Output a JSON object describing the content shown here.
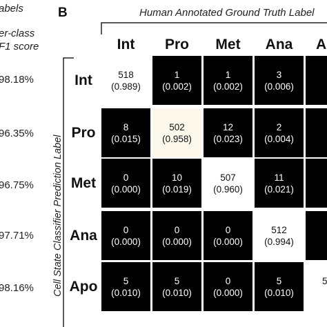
{
  "panel_a": {
    "header_line1": "abels",
    "header_line2": "er-class",
    "header_line3": "F1 score",
    "scores": [
      "98.18%",
      "96.35%",
      "96.75%",
      "97.71%",
      "98.16%"
    ]
  },
  "panel_b": {
    "letter": "B",
    "x_title": "Human Annotated Ground Truth Label",
    "y_title": "Cell State Classifier Prediction Label"
  },
  "chart_data": {
    "type": "heatmap",
    "title": "",
    "xlabel": "Human Annotated Ground Truth Label",
    "ylabel": "Cell State Classifier Prediction Label",
    "columns": [
      "Int",
      "Pro",
      "Met",
      "Ana",
      "A"
    ],
    "rows": [
      "Int",
      "Pro",
      "Met",
      "Ana",
      "Apo"
    ],
    "values": [
      [
        518,
        1,
        1,
        3,
        null
      ],
      [
        8,
        502,
        12,
        2,
        null
      ],
      [
        0,
        10,
        507,
        11,
        null
      ],
      [
        0,
        0,
        0,
        512,
        null
      ],
      [
        5,
        5,
        0,
        5,
        5
      ]
    ],
    "fractions": [
      [
        "(0.989)",
        "(0.002)",
        "(0.002)",
        "(0.006)",
        ""
      ],
      [
        "(0.015)",
        "(0.958)",
        "(0.023)",
        "(0.004)",
        ""
      ],
      [
        "(0.000)",
        "(0.019)",
        "(0.960)",
        "(0.021)",
        ""
      ],
      [
        "(0.000)",
        "(0.000)",
        "(0.000)",
        "(0.994)",
        ""
      ],
      [
        "(0.010)",
        "(0.010)",
        "(0.000)",
        "(0.010)",
        ""
      ]
    ],
    "colors": {
      "low": "#000000",
      "high": "#ffffff",
      "mid": "#fcf8ec"
    }
  }
}
